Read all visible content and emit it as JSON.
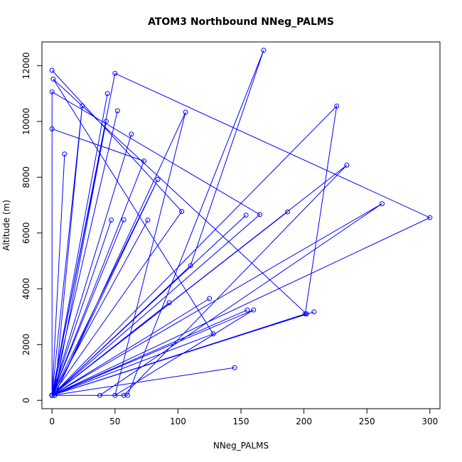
{
  "chart_data": {
    "type": "line",
    "title": "ATOM3 Northbound NNeg_PALMS",
    "xlabel": "NNeg_PALMS",
    "ylabel": "Altitude (m)",
    "xlim": [
      -8,
      308
    ],
    "ylim": [
      -300,
      12850
    ],
    "xticks": [
      0,
      50,
      100,
      150,
      200,
      250,
      300
    ],
    "yticks": [
      0,
      2000,
      4000,
      6000,
      8000,
      10000,
      12000
    ],
    "grid": false,
    "legend": "none",
    "series": [
      {
        "color": "#0000ff",
        "marker": "open-circle",
        "points": [
          [
            0,
            11830
          ],
          [
            103,
            6773
          ],
          [
            0,
            180
          ],
          [
            38,
            180
          ],
          [
            262,
            7050
          ],
          [
            0,
            180
          ],
          [
            50,
            11720
          ],
          [
            300,
            6550
          ],
          [
            0,
            180
          ],
          [
            208,
            3170
          ],
          [
            0,
            180
          ],
          [
            202,
            3100
          ],
          [
            1,
            11520
          ],
          [
            128,
            2380
          ],
          [
            0,
            180
          ],
          [
            57,
            180
          ],
          [
            234,
            8430
          ],
          [
            0,
            180
          ],
          [
            60,
            180
          ],
          [
            168,
            12550
          ],
          [
            110,
            4830
          ],
          [
            0,
            180
          ],
          [
            125,
            3650
          ],
          [
            0,
            180
          ],
          [
            0,
            11060
          ],
          [
            165,
            6660
          ],
          [
            0,
            180
          ],
          [
            145,
            1170
          ],
          [
            0,
            180
          ],
          [
            155,
            3240
          ],
          [
            0,
            180
          ],
          [
            226,
            10550
          ],
          [
            201,
            3100
          ],
          [
            0,
            180
          ],
          [
            187,
            6760
          ],
          [
            0,
            180
          ],
          [
            154,
            6640
          ],
          [
            0,
            180
          ],
          [
            0,
            9730
          ],
          [
            73,
            8580
          ],
          [
            0,
            180
          ],
          [
            43,
            10000
          ],
          [
            2,
            180
          ],
          [
            84,
            7920
          ],
          [
            0,
            180
          ],
          [
            24,
            10560
          ],
          [
            2,
            180
          ],
          [
            106,
            10330
          ],
          [
            50,
            180
          ],
          [
            160,
            3240
          ],
          [
            0,
            180
          ],
          [
            93,
            3500
          ],
          [
            0,
            180
          ],
          [
            63,
            9540
          ],
          [
            0,
            180
          ],
          [
            52,
            10380
          ],
          [
            0,
            180
          ],
          [
            10,
            8830
          ],
          [
            0,
            180
          ],
          [
            44,
            11000
          ],
          [
            0,
            180
          ],
          [
            47,
            6460
          ],
          [
            0,
            180
          ],
          [
            57,
            6470
          ],
          [
            0,
            180
          ],
          [
            76,
            6460
          ]
        ]
      }
    ]
  }
}
